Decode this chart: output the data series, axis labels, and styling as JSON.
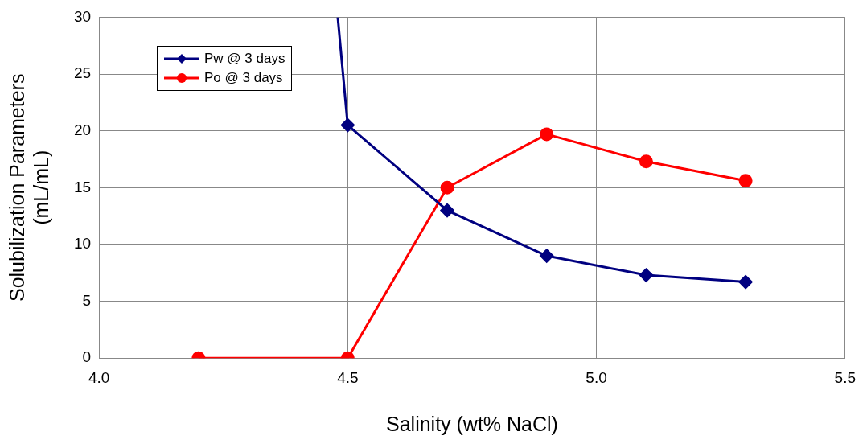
{
  "chart_data": {
    "type": "line",
    "xlabel": "Salinity (wt% NaCl)",
    "ylabel": "Solubilization Parameters (mL/mL)",
    "xlim": [
      4.0,
      5.5
    ],
    "xticks": [
      {
        "value": 4.0,
        "label": "4.0"
      },
      {
        "value": 4.5,
        "label": "4.5"
      },
      {
        "value": 5.0,
        "label": "5.0"
      },
      {
        "value": 5.5,
        "label": "5.5"
      }
    ],
    "ylim": [
      0,
      30
    ],
    "yticks": [
      0,
      5,
      10,
      15,
      20,
      25,
      30
    ],
    "grid": true,
    "legend": "top left",
    "series": [
      {
        "name": "Pw @ 3 days",
        "color": "#000080",
        "marker": "diamond",
        "x": [
          4.48,
          4.5,
          4.7,
          4.9,
          5.1,
          5.3
        ],
        "values": [
          30,
          20.5,
          13,
          9,
          7.3,
          6.7
        ]
      },
      {
        "name": "Po @ 3 days",
        "color": "#ff0000",
        "marker": "circle",
        "x": [
          4.2,
          4.5,
          4.7,
          4.9,
          5.1,
          5.3
        ],
        "values": [
          0,
          0,
          15,
          19.7,
          17.3,
          15.6
        ]
      }
    ]
  }
}
